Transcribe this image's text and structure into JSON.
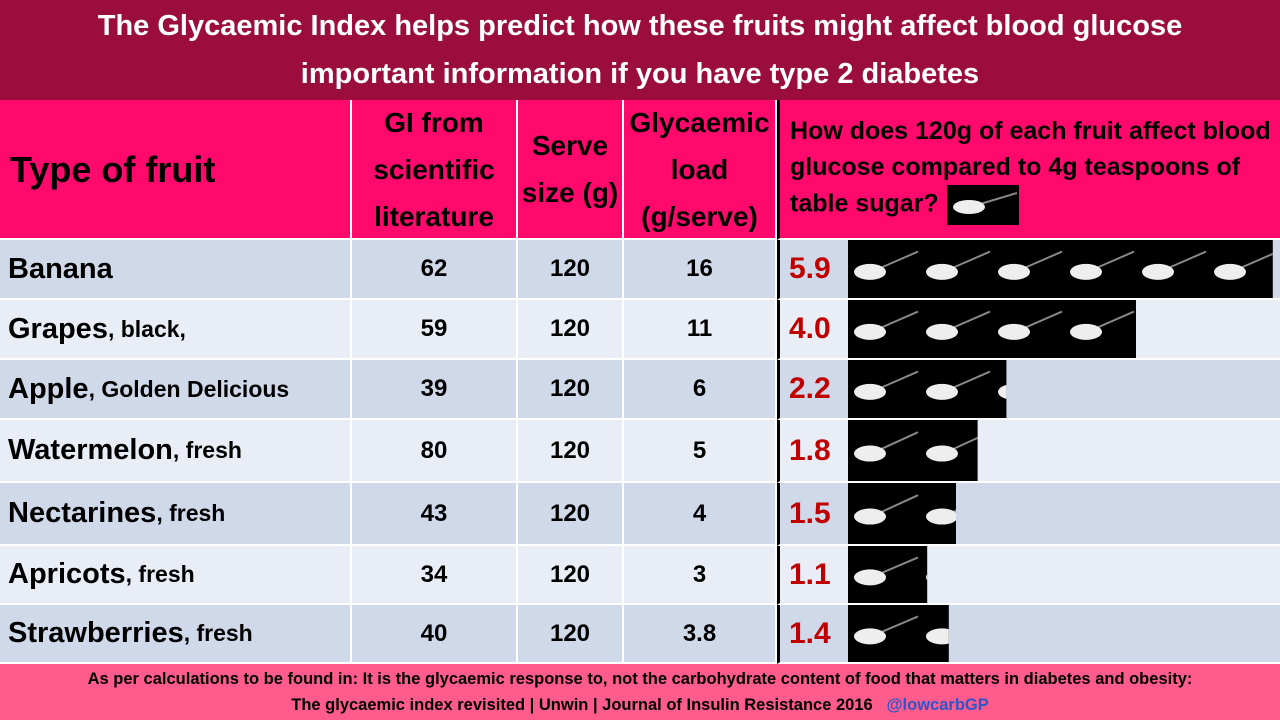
{
  "title": [
    "The Glycaemic Index helps predict how these fruits might affect blood glucose",
    "important information if you have type 2 diabetes"
  ],
  "table": {
    "headers": [
      "Type of fruit",
      "GI from scientific literature",
      "Serve size (g)",
      "Glycaemic load (g/serve)",
      "How does 120g of each fruit affect blood glucose compared to 4g teaspoons of table sugar?"
    ],
    "rows": [
      {
        "name": "Banana",
        "detail": null,
        "gi": 62,
        "serve": 120,
        "load": 16,
        "teaspoons": 5.9
      },
      {
        "name": "Grapes",
        "detail": ", black,",
        "gi": 59,
        "serve": 120,
        "load": 11,
        "teaspoons": {
          "value": 4,
          "label": "4.0"
        }
      },
      {
        "name": "Apple",
        "detail": ", Golden Delicious",
        "gi": 39,
        "serve": 120,
        "load": 6,
        "teaspoons": 2.2
      },
      {
        "name": "Watermelon",
        "detail": ", fresh",
        "gi": 80,
        "serve": 120,
        "load": 5,
        "teaspoons": 1.8
      },
      {
        "name": "Nectarines",
        "detail": ", fresh",
        "gi": 43,
        "serve": 120,
        "load": 4,
        "teaspoons": 1.5
      },
      {
        "name": "Apricots",
        "detail": ", fresh",
        "gi": 34,
        "serve": 120,
        "load": 3,
        "teaspoons": 1.1
      },
      {
        "name": "Strawberries",
        "detail": ", fresh",
        "gi": 40,
        "serve": 120,
        "load": 3.8,
        "teaspoons": 1.4
      }
    ]
  },
  "footer": {
    "line1": "As per calculations to be found in: It is the glycaemic response to, not the carbohydrate content of food that matters in diabetes and obesity:",
    "line2": "The glycaemic index revisited | Unwin | Journal of Insulin Resistance 2016",
    "handle": "@lowcarbGP"
  }
}
